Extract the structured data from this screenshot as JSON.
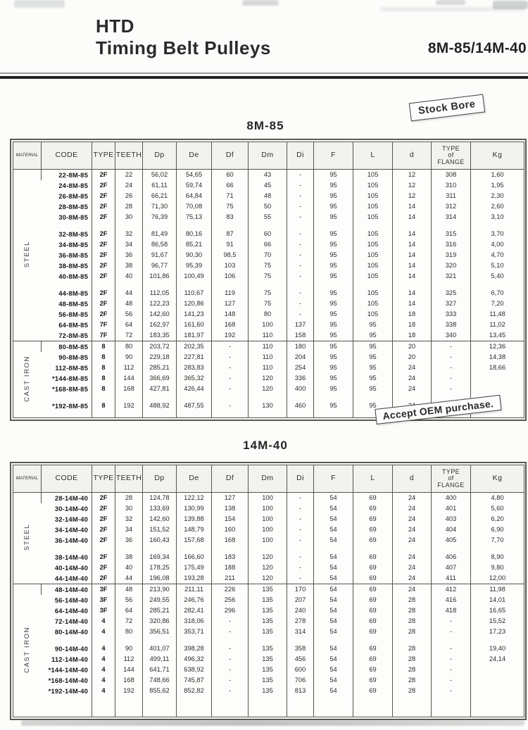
{
  "header": {
    "title_line1": "HTD",
    "title_line2": "Timing Belt Pulleys",
    "model_range": "8M-85/14M-40",
    "stock_bore_badge": "Stock Bore",
    "oem_banner": "Accept OEM purchase."
  },
  "columns": [
    "MATERIAL",
    "CODE",
    "TYPE",
    "TEETH",
    "Dp",
    "De",
    "Df",
    "Dm",
    "Di",
    "F",
    "L",
    "d",
    "TYPE\nof\nFLANGE",
    "Kg"
  ],
  "column_keys": [
    "code",
    "type",
    "teeth",
    "dp",
    "de",
    "df",
    "dm",
    "di",
    "f",
    "l",
    "d",
    "flange",
    "kg"
  ],
  "tables": [
    {
      "title": "8M-85",
      "groups": [
        {
          "material": "STEEL",
          "blocks": [
            [
              [
                "22-8M-85",
                "2F",
                "22",
                "56,02",
                "54,65",
                "60",
                "43",
                "-",
                "95",
                "105",
                "12",
                "308",
                "1,60"
              ],
              [
                "24-8M-85",
                "2F",
                "24",
                "61,11",
                "59,74",
                "66",
                "45",
                "-",
                "95",
                "105",
                "12",
                "310",
                "1,95"
              ],
              [
                "26-8M-85",
                "2F",
                "26",
                "66,21",
                "64,84",
                "71",
                "48",
                "-",
                "95",
                "105",
                "12",
                "311",
                "2,30"
              ],
              [
                "28-8M-85",
                "2F",
                "28",
                "71,30",
                "70,08",
                "75",
                "50",
                "-",
                "95",
                "105",
                "14",
                "312",
                "2,60"
              ],
              [
                "30-8M-85",
                "2F",
                "30",
                "76,39",
                "75,13",
                "83",
                "55",
                "-",
                "95",
                "105",
                "14",
                "314",
                "3,10"
              ]
            ],
            [
              [
                "32-8M-85",
                "2F",
                "32",
                "81,49",
                "80,16",
                "87",
                "60",
                "-",
                "95",
                "105",
                "14",
                "315",
                "3,70"
              ],
              [
                "34-8M-85",
                "2F",
                "34",
                "86,58",
                "85,21",
                "91",
                "66",
                "-",
                "95",
                "105",
                "14",
                "316",
                "4,00"
              ],
              [
                "36-8M-85",
                "2F",
                "36",
                "91,67",
                "90,30",
                "98,5",
                "70",
                "-",
                "95",
                "105",
                "14",
                "319",
                "4,70"
              ],
              [
                "38-8M-85",
                "2F",
                "38",
                "96,77",
                "95,39",
                "103",
                "75",
                "-",
                "95",
                "105",
                "14",
                "320",
                "5,10"
              ],
              [
                "40-8M-85",
                "2F",
                "40",
                "101,86",
                "100,49",
                "106",
                "75",
                "-",
                "95",
                "105",
                "14",
                "321",
                "5,40"
              ]
            ],
            [
              [
                "44-8M-85",
                "2F",
                "44",
                "112,05",
                "110,67",
                "119",
                "75",
                "-",
                "95",
                "105",
                "14",
                "325",
                "6,70"
              ],
              [
                "48-8M-85",
                "2F",
                "48",
                "122,23",
                "120,86",
                "127",
                "75",
                "-",
                "95",
                "105",
                "14",
                "327",
                "7,20"
              ],
              [
                "56-8M-85",
                "2F",
                "56",
                "142,60",
                "141,23",
                "148",
                "80",
                "-",
                "95",
                "105",
                "18",
                "333",
                "11,48"
              ],
              [
                "64-8M-85",
                "7F",
                "64",
                "162,97",
                "161,60",
                "168",
                "100",
                "137",
                "95",
                "95",
                "18",
                "338",
                "11,02"
              ],
              [
                "72-8M-85",
                "7F",
                "72",
                "183,35",
                "181,97",
                "192",
                "110",
                "158",
                "95",
                "95",
                "18",
                "340",
                "13,45"
              ]
            ]
          ]
        },
        {
          "material": "CAST IRON",
          "blocks": [
            [
              [
                "80-8M-85",
                "8",
                "80",
                "203,72",
                "202,35",
                "-",
                "110",
                "180",
                "95",
                "95",
                "20",
                "-",
                "12,36"
              ],
              [
                "90-8M-85",
                "8",
                "90",
                "229,18",
                "227,81",
                "-",
                "110",
                "204",
                "95",
                "95",
                "20",
                "-",
                "14,38"
              ],
              [
                "112-8M-85",
                "8",
                "112",
                "285,21",
                "283,83",
                "-",
                "110",
                "254",
                "95",
                "95",
                "24",
                "-",
                "18,66"
              ],
              [
                "*144-8M-85",
                "8",
                "144",
                "366,69",
                "365,32",
                "-",
                "120",
                "336",
                "95",
                "95",
                "24",
                "-",
                ""
              ],
              [
                "*168-8M-85",
                "8",
                "168",
                "427,81",
                "426,44",
                "-",
                "120",
                "400",
                "95",
                "95",
                "24",
                "-",
                ""
              ]
            ],
            [
              [
                "*192-8M-85",
                "8",
                "192",
                "488,92",
                "487,55",
                "-",
                "130",
                "460",
                "95",
                "95",
                "24",
                "-",
                ""
              ]
            ]
          ]
        }
      ]
    },
    {
      "title": "14M-40",
      "groups": [
        {
          "material": "STEEL",
          "blocks": [
            [
              [
                "28-14M-40",
                "2F",
                "28",
                "124,78",
                "122,12",
                "127",
                "100",
                "-",
                "54",
                "69",
                "24",
                "400",
                "4,80"
              ],
              [
                "30-14M-40",
                "2F",
                "30",
                "133,69",
                "130,99",
                "138",
                "100",
                "-",
                "54",
                "69",
                "24",
                "401",
                "5,60"
              ],
              [
                "32-14M-40",
                "2F",
                "32",
                "142,60",
                "139,88",
                "154",
                "100",
                "-",
                "54",
                "69",
                "24",
                "403",
                "6,20"
              ],
              [
                "34-14M-40",
                "2F",
                "34",
                "151,52",
                "148,79",
                "160",
                "100",
                "-",
                "54",
                "69",
                "24",
                "404",
                "6,90"
              ],
              [
                "36-14M-40",
                "2F",
                "36",
                "160,43",
                "157,68",
                "168",
                "100",
                "-",
                "54",
                "69",
                "24",
                "405",
                "7,70"
              ]
            ],
            [
              [
                "38-14M-40",
                "2F",
                "38",
                "169,34",
                "166,60",
                "183",
                "120",
                "-",
                "54",
                "69",
                "24",
                "406",
                "8,90"
              ],
              [
                "40-14M-40",
                "2F",
                "40",
                "178,25",
                "175,49",
                "188",
                "120",
                "-",
                "54",
                "69",
                "24",
                "407",
                "9,80"
              ],
              [
                "44-14M-40",
                "2F",
                "44",
                "196,08",
                "193,28",
                "211",
                "120",
                "-",
                "54",
                "69",
                "24",
                "411",
                "12,00"
              ]
            ]
          ]
        },
        {
          "material": "CAST IRON",
          "blocks": [
            [
              [
                "48-14M-40",
                "3F",
                "48",
                "213,90",
                "211,11",
                "226",
                "135",
                "170",
                "54",
                "69",
                "24",
                "412",
                "11,98"
              ],
              [
                "56-14M-40",
                "3F",
                "56",
                "249,55",
                "246,76",
                "256",
                "135",
                "207",
                "54",
                "69",
                "28",
                "416",
                "14,01"
              ],
              [
                "64-14M-40",
                "3F",
                "64",
                "285,21",
                "282,41",
                "296",
                "135",
                "240",
                "54",
                "69",
                "28",
                "418",
                "16,65"
              ],
              [
                "72-14M-40",
                "4",
                "72",
                "320,86",
                "318,06",
                "-",
                "135",
                "278",
                "54",
                "69",
                "28",
                "-",
                "15,52"
              ],
              [
                "80-14M-40",
                "4",
                "80",
                "356,51",
                "353,71",
                "-",
                "135",
                "314",
                "54",
                "69",
                "28",
                "-",
                "17,23"
              ]
            ],
            [
              [
                "90-14M-40",
                "4",
                "90",
                "401,07",
                "398,28",
                "-",
                "135",
                "358",
                "54",
                "69",
                "28",
                "-",
                "19,40"
              ],
              [
                "112-14M-40",
                "4",
                "112",
                "499,11",
                "496,32",
                "-",
                "135",
                "456",
                "54",
                "69",
                "28",
                "-",
                "24,14"
              ],
              [
                "*144-14M-40",
                "4",
                "144",
                "641,71",
                "638,92",
                "-",
                "135",
                "600",
                "54",
                "69",
                "28",
                "-",
                ""
              ],
              [
                "*168-14M-40",
                "4",
                "168",
                "748,66",
                "745,87",
                "-",
                "135",
                "706",
                "54",
                "69",
                "28",
                "-",
                ""
              ],
              [
                "*192-14M-40",
                "4",
                "192",
                "855,62",
                "852,82",
                "-",
                "135",
                "813",
                "54",
                "69",
                "28",
                "-",
                ""
              ]
            ]
          ]
        }
      ]
    }
  ]
}
